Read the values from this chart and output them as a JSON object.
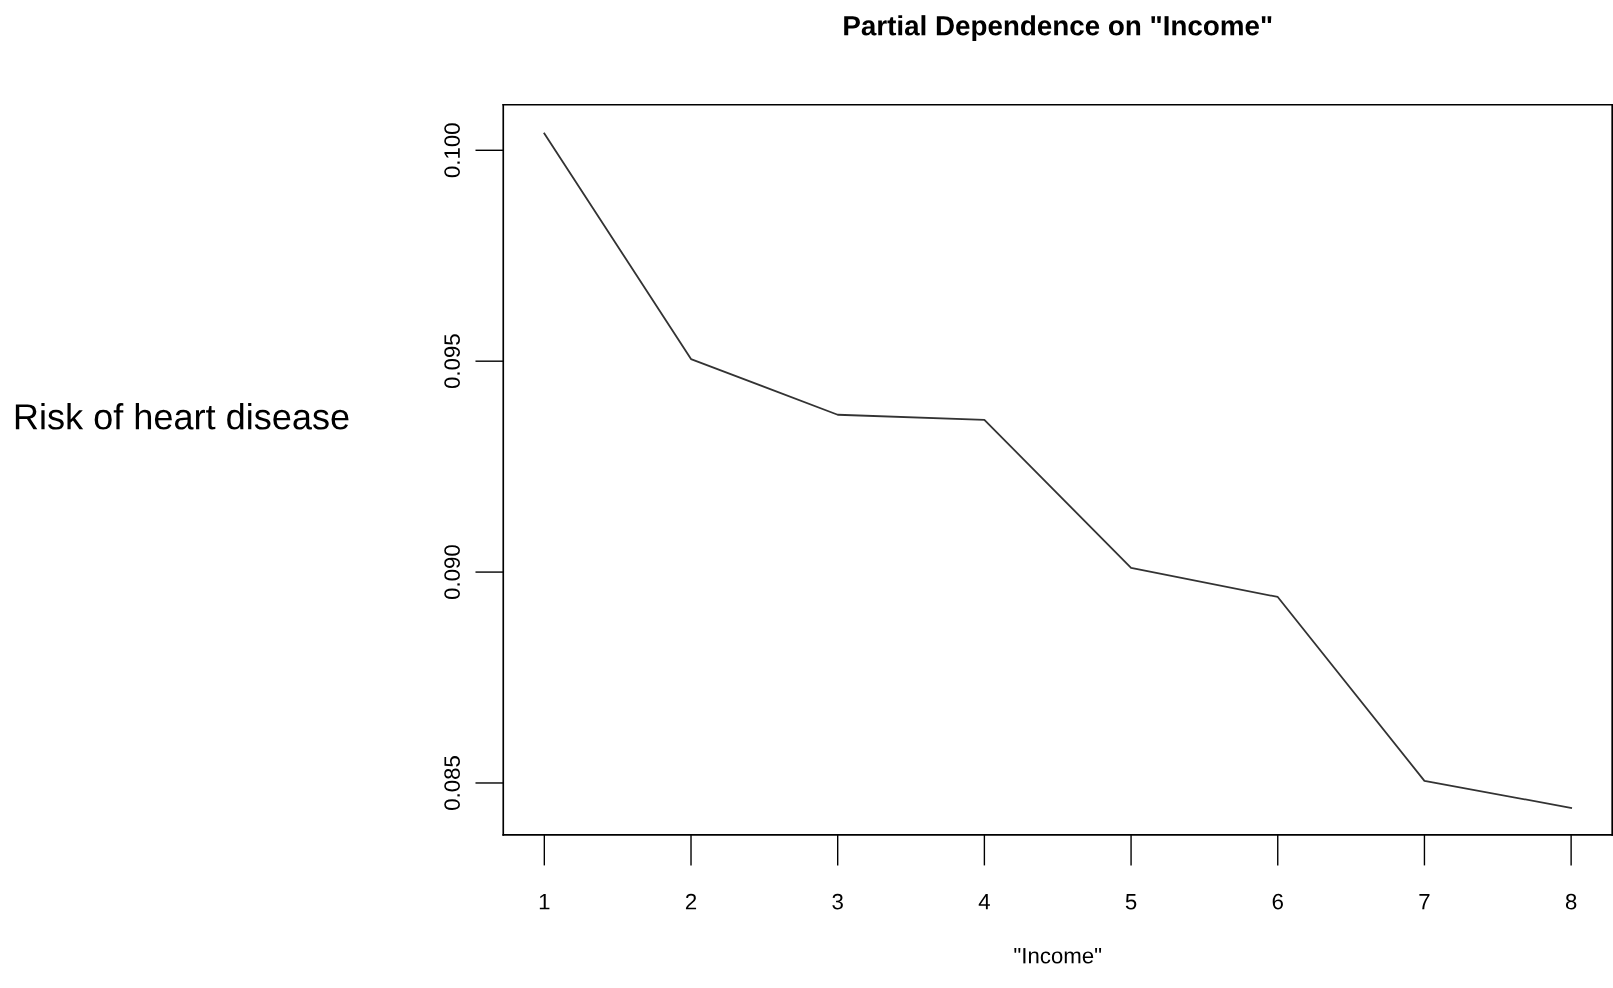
{
  "chart_data": {
    "type": "line",
    "title": "Partial Dependence on \"Income\"",
    "xlabel": "\"Income\"",
    "ylabel": "Risk of heart disease",
    "x": [
      1,
      2,
      3,
      4,
      5,
      6,
      7,
      8
    ],
    "series": [
      {
        "color": "#333333",
        "values": [
          0.1004,
          0.09505,
          0.09373,
          0.09361,
          0.0901,
          0.08941,
          0.08505,
          0.08441
        ]
      }
    ],
    "xlim": [
      0.72,
      8.28
    ],
    "ylim": [
      0.08377,
      0.10108
    ],
    "xticks": [
      1,
      2,
      3,
      4,
      5,
      6,
      7,
      8
    ],
    "yticks": [
      {
        "value": 0.085,
        "label": "0.085"
      },
      {
        "value": 0.09,
        "label": "0.090"
      },
      {
        "value": 0.095,
        "label": "0.095"
      },
      {
        "value": 0.1,
        "label": "0.100"
      }
    ],
    "grid": false,
    "marker": "none",
    "line_style": "solid"
  }
}
